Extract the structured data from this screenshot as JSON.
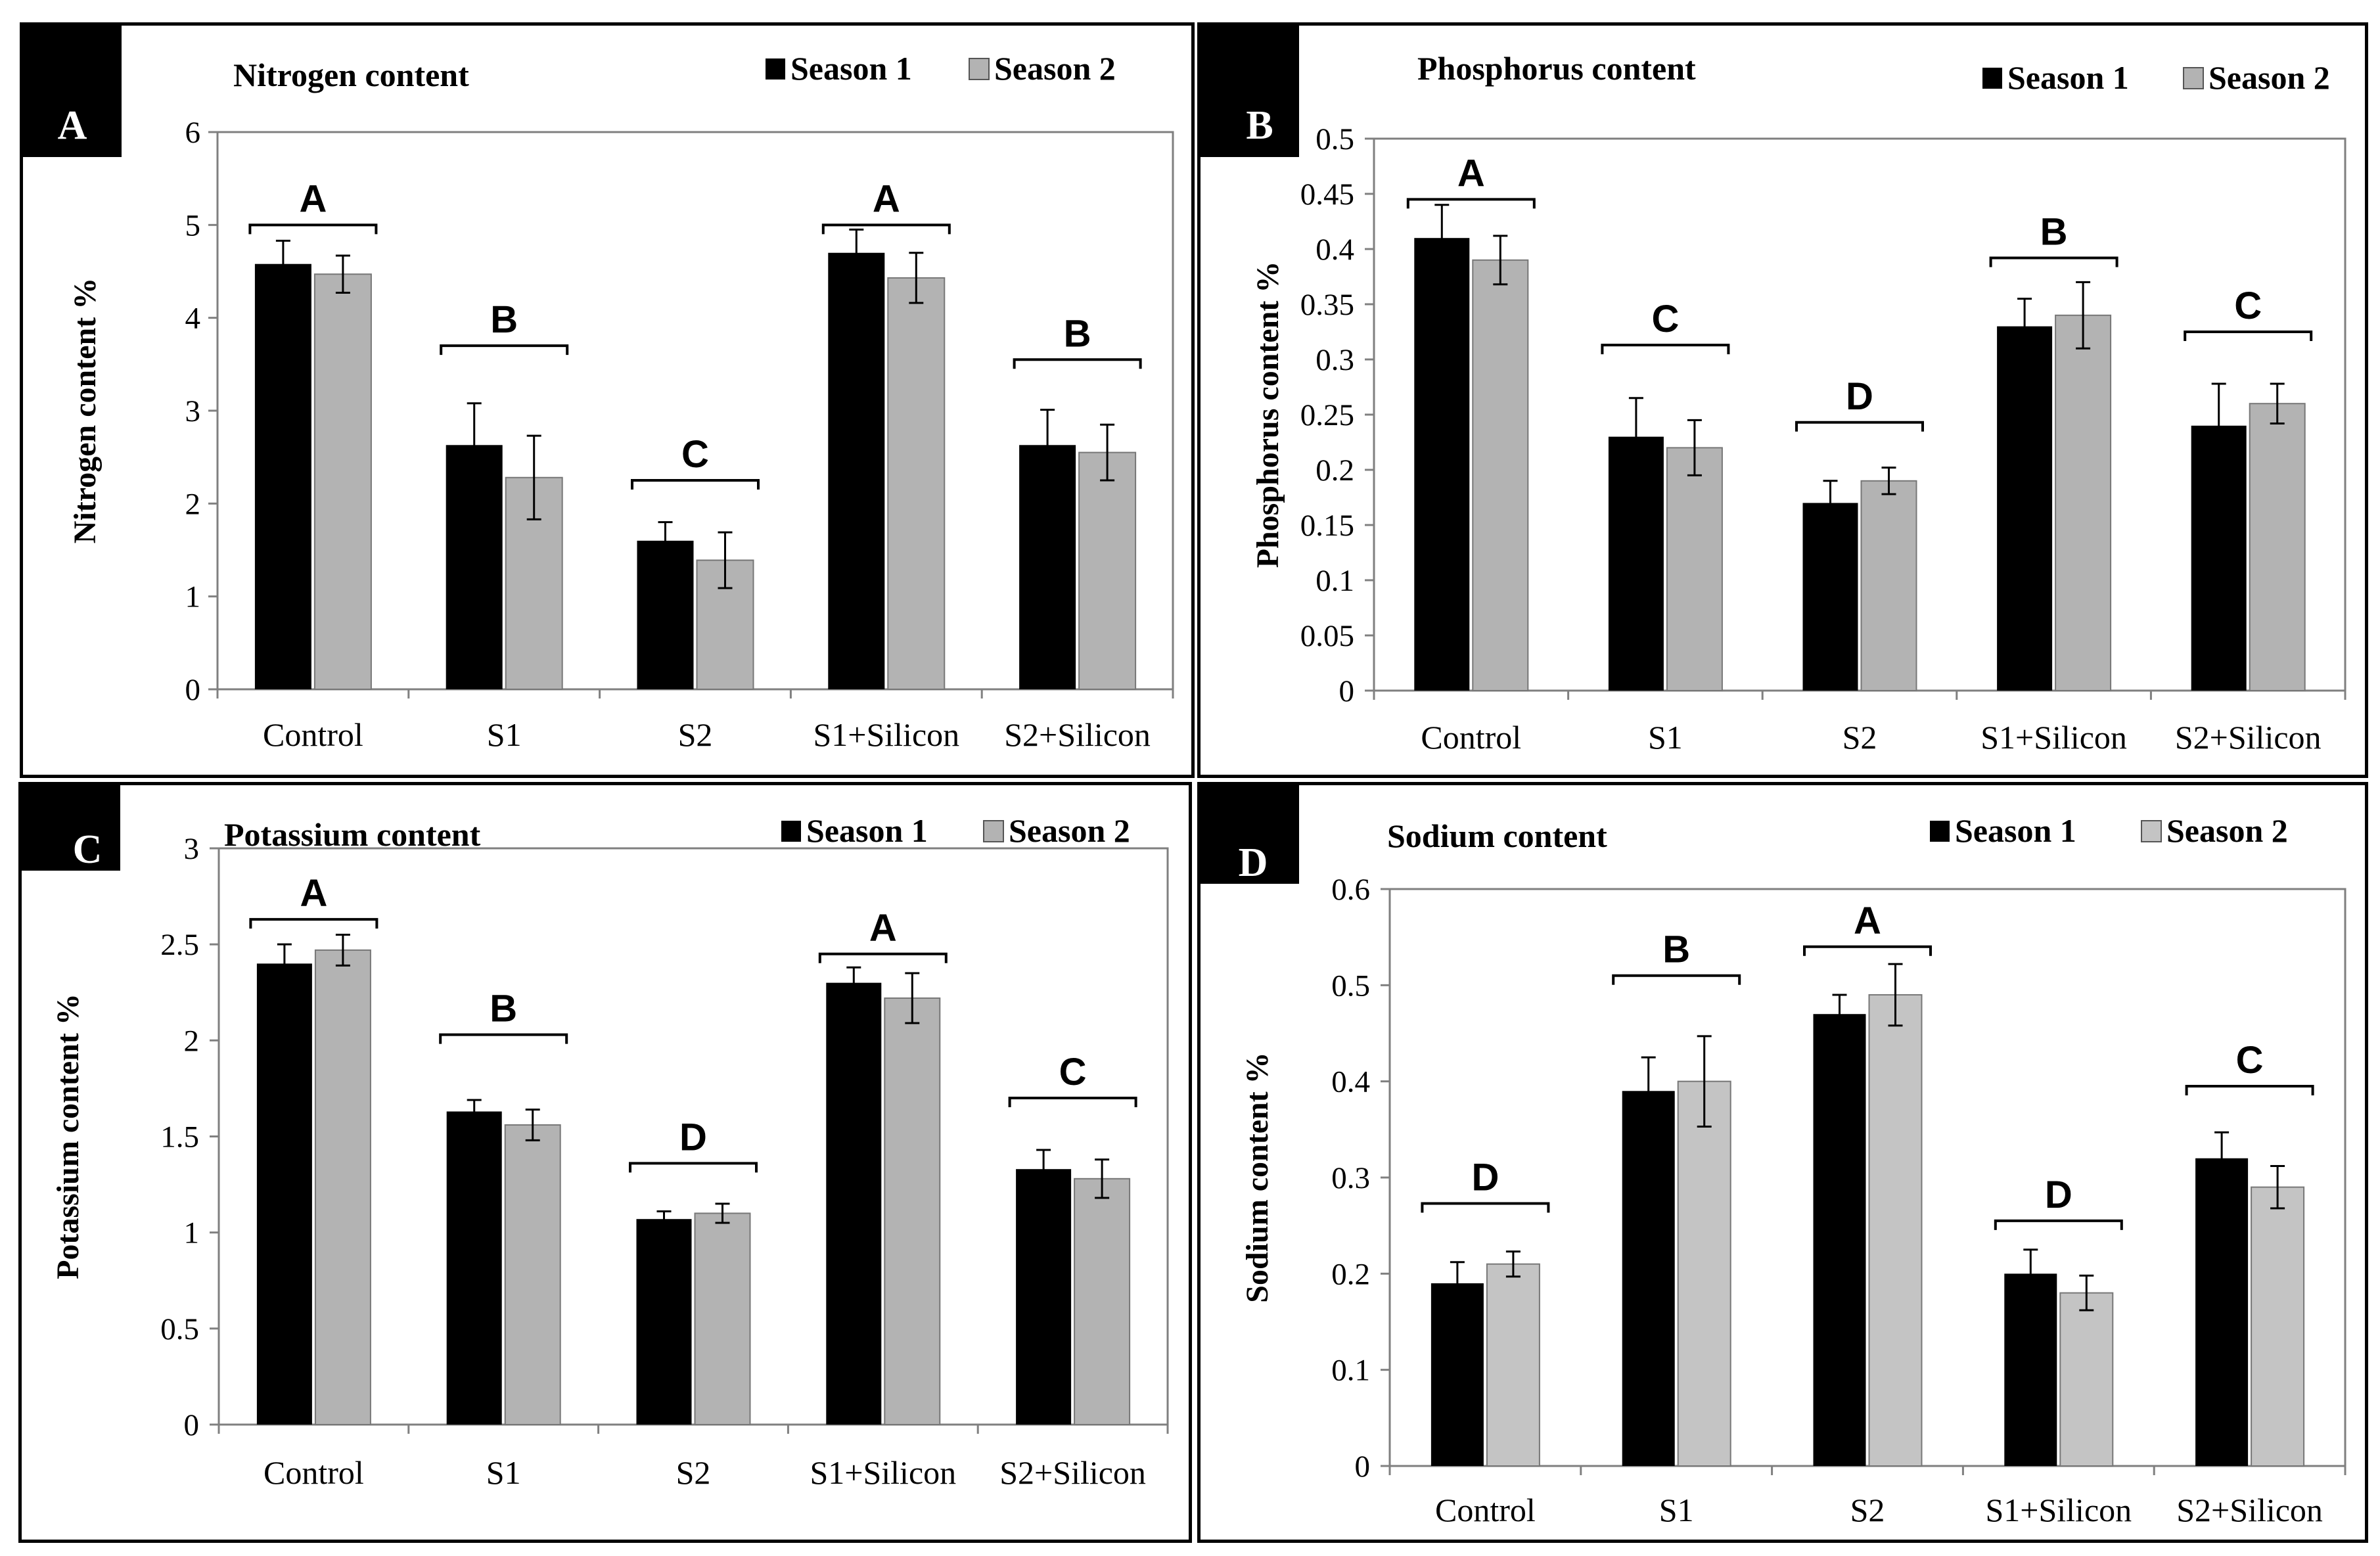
{
  "figure": {
    "legend_labels": [
      "Season 1",
      "Season 2"
    ],
    "colors": {
      "season1": "#000000",
      "season2": "#b3b3b3",
      "season2_light": "#c4c4c4",
      "frame": "#7f7f7f",
      "axis": "#808080"
    }
  },
  "chart_data": [
    {
      "type": "bar",
      "panel_label": "A",
      "title": "Nitrogen content",
      "ylabel": "Nitrogen content %",
      "xlabel": "",
      "categories": [
        "Control",
        "S1",
        "S2",
        "S1+Silicon",
        "S2+Silicon"
      ],
      "series": [
        {
          "name": "Season 1",
          "values": [
            4.58,
            2.63,
            1.6,
            4.7,
            2.63
          ],
          "errors": [
            0.25,
            0.45,
            0.2,
            0.25,
            0.38
          ]
        },
        {
          "name": "Season 2",
          "values": [
            4.47,
            2.28,
            1.39,
            4.43,
            2.55
          ],
          "errors": [
            0.2,
            0.45,
            0.3,
            0.27,
            0.3
          ]
        }
      ],
      "group_letters": [
        "A",
        "B",
        "C",
        "A",
        "B"
      ],
      "letter_levels": [
        5.0,
        3.7,
        2.25,
        5.0,
        3.55
      ],
      "ylim": [
        0,
        6
      ],
      "yticks": [
        "0",
        "1",
        "2",
        "3",
        "4",
        "5",
        "6"
      ]
    },
    {
      "type": "bar",
      "panel_label": "B",
      "title": "Phosphorus content",
      "ylabel": "Phosphorus content %",
      "xlabel": "",
      "categories": [
        "Control",
        "S1",
        "S2",
        "S1+Silicon",
        "S2+Silicon"
      ],
      "series": [
        {
          "name": "Season 1",
          "values": [
            0.41,
            0.23,
            0.17,
            0.33,
            0.24
          ],
          "errors": [
            0.03,
            0.035,
            0.02,
            0.025,
            0.038
          ]
        },
        {
          "name": "Season 2",
          "values": [
            0.39,
            0.22,
            0.19,
            0.34,
            0.26
          ],
          "errors": [
            0.022,
            0.025,
            0.012,
            0.03,
            0.018
          ]
        }
      ],
      "group_letters": [
        "A",
        "C",
        "D",
        "B",
        "C"
      ],
      "letter_levels": [
        0.445,
        0.313,
        0.243,
        0.392,
        0.325
      ],
      "ylim": [
        0,
        0.5
      ],
      "yticks": [
        "0",
        "0.05",
        "0.1",
        "0.15",
        "0.2",
        "0.25",
        "0.3",
        "0.35",
        "0.4",
        "0.45",
        "0.5"
      ]
    },
    {
      "type": "bar",
      "panel_label": "C",
      "title": "Potassium content",
      "ylabel": "Potassium content %",
      "xlabel": "",
      "categories": [
        "Control",
        "S1",
        "S2",
        "S1+Silicon",
        "S2+Silicon"
      ],
      "series": [
        {
          "name": "Season 1",
          "values": [
            2.4,
            1.63,
            1.07,
            2.3,
            1.33
          ],
          "errors": [
            0.1,
            0.06,
            0.04,
            0.08,
            0.1
          ]
        },
        {
          "name": "Season 2",
          "values": [
            2.47,
            1.56,
            1.1,
            2.22,
            1.28
          ],
          "errors": [
            0.08,
            0.08,
            0.05,
            0.13,
            0.1
          ]
        }
      ],
      "group_letters": [
        "A",
        "B",
        "D",
        "A",
        "C"
      ],
      "letter_levels": [
        2.63,
        2.03,
        1.36,
        2.45,
        1.7
      ],
      "ylim": [
        0,
        3
      ],
      "yticks": [
        "0",
        "0.5",
        "1",
        "1.5",
        "2",
        "2.5",
        "3"
      ]
    },
    {
      "type": "bar",
      "panel_label": "D",
      "title": "Sodium content",
      "ylabel": "Sodium content %",
      "xlabel": "",
      "categories": [
        "Control",
        "S1",
        "S2",
        "S1+Silicon",
        "S2+Silicon"
      ],
      "series": [
        {
          "name": "Season 1",
          "values": [
            0.19,
            0.39,
            0.47,
            0.2,
            0.32
          ],
          "errors": [
            0.022,
            0.035,
            0.02,
            0.025,
            0.027
          ]
        },
        {
          "name": "Season 2",
          "values": [
            0.21,
            0.4,
            0.49,
            0.18,
            0.29
          ],
          "errors": [
            0.013,
            0.047,
            0.032,
            0.018,
            0.022
          ]
        }
      ],
      "group_letters": [
        "D",
        "B",
        "A",
        "D",
        "C"
      ],
      "letter_levels": [
        0.273,
        0.51,
        0.54,
        0.255,
        0.395
      ],
      "ylim": [
        0,
        0.6
      ],
      "yticks": [
        "0",
        "0.1",
        "0.2",
        "0.3",
        "0.4",
        "0.5",
        "0.6"
      ]
    }
  ]
}
